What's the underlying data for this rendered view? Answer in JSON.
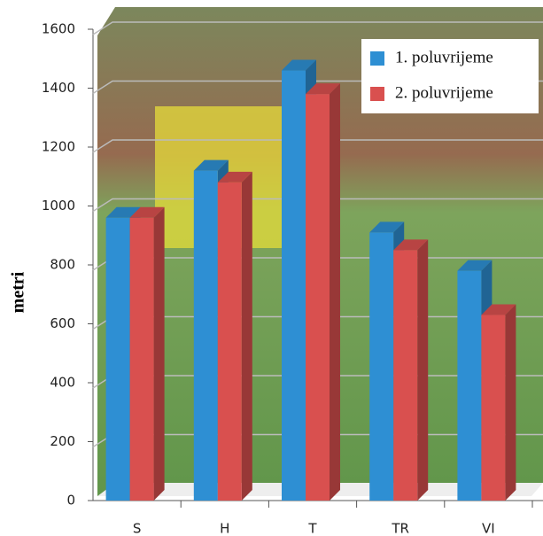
{
  "chart_data": {
    "type": "bar3d",
    "y_label": "metri",
    "categories": [
      "S",
      "H",
      "T",
      "TR",
      "VI"
    ],
    "series": [
      {
        "name": "1. poluvrijeme",
        "color": "#2e8fd3",
        "values": [
          960,
          1120,
          1460,
          910,
          780
        ]
      },
      {
        "name": "2. poluvrijeme",
        "color": "#d9504f",
        "values": [
          960,
          1080,
          1380,
          850,
          630
        ]
      }
    ],
    "ylim": [
      0,
      1600
    ],
    "yticks": [
      0,
      200,
      400,
      600,
      800,
      1000,
      1200,
      1400,
      1600
    ],
    "grid": true,
    "legend": "top-right"
  }
}
